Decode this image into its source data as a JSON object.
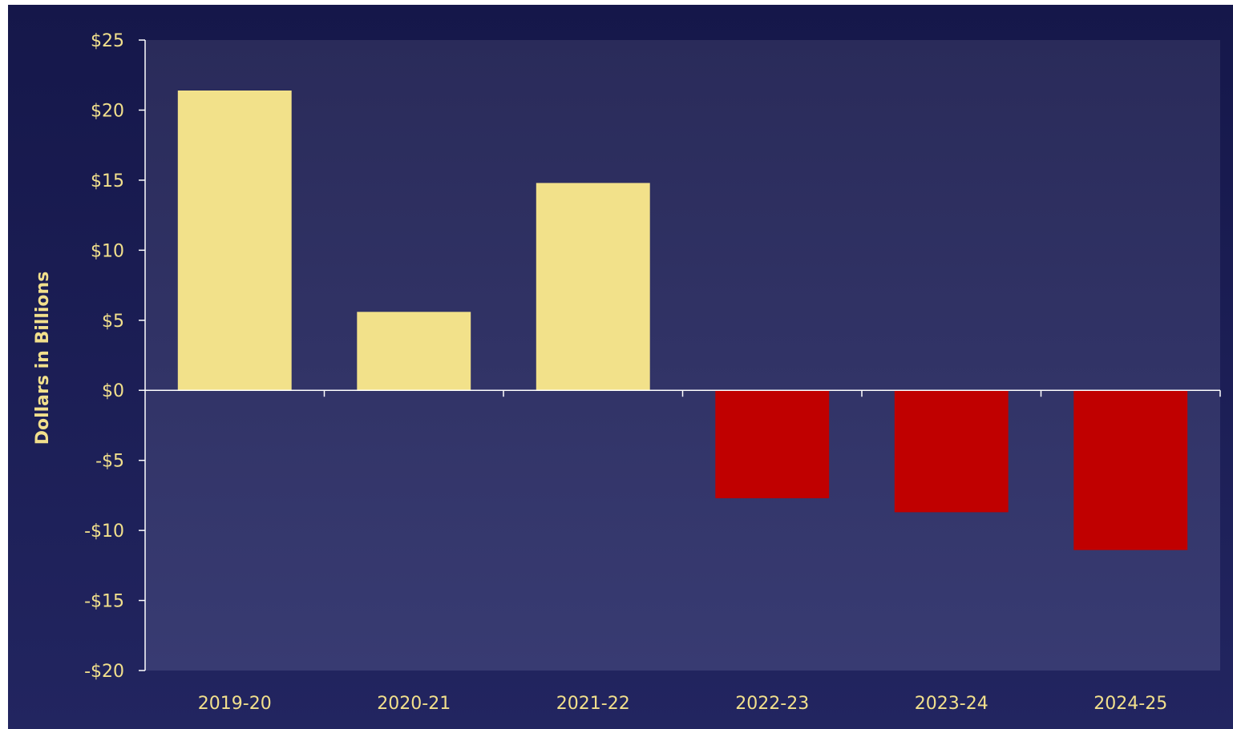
{
  "chart_data": {
    "type": "bar",
    "title": "",
    "xlabel": "",
    "ylabel": "Dollars in Billions",
    "categories": [
      "2019-20",
      "2020-21",
      "2021-22",
      "2022-23",
      "2023-24",
      "2024-25"
    ],
    "values": [
      21.4,
      5.6,
      14.8,
      -7.7,
      -8.7,
      -11.4
    ],
    "ylim": [
      -20,
      25
    ],
    "y_ticks": [
      25,
      20,
      15,
      10,
      5,
      0,
      -5,
      -10,
      -15,
      -20
    ],
    "y_tick_labels": [
      "$25",
      "$20",
      "$15",
      "$10",
      "$5",
      "$0",
      "-$5",
      "-$10",
      "-$15",
      "-$20"
    ],
    "grid": false,
    "legend": "none",
    "colors": {
      "positive_bar": "#f2e18a",
      "negative_bar": "#c00000",
      "text": "#f2e08c",
      "axis": "#ffffff",
      "outer_background_top": "#15174a",
      "outer_background_bottom": "#222560",
      "plot_background_top": "#2a2b5a",
      "plot_background_bottom": "#383b72"
    }
  }
}
